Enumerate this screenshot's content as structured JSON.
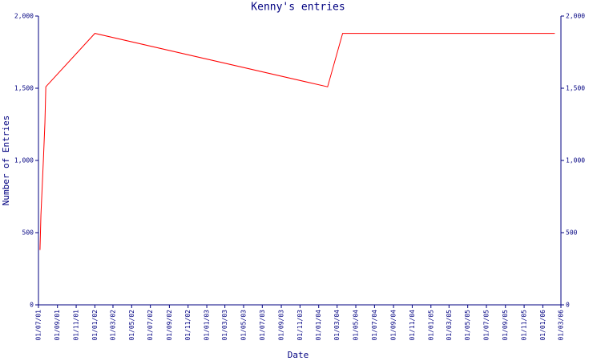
{
  "chart_data": {
    "type": "line",
    "title": "Kenny's entries",
    "x_label": "Date",
    "y_label": "Number of Entries",
    "x": [
      "2001-07-06",
      "2001-07-09",
      "2001-07-17",
      "2001-07-22",
      "2001-07-25",
      "2002-01-01",
      "2004-01-30",
      "2004-03-19",
      "2006-02-09"
    ],
    "values": [
      380,
      620,
      1000,
      1260,
      1510,
      1880,
      1510,
      1880,
      1880
    ],
    "color": "#ff0000",
    "xlim": [
      "2001-07-01",
      "2006-03-01"
    ],
    "xticks": [
      {
        "value": "2001-07-01",
        "label": "01/07/01"
      },
      {
        "value": "2001-09-01",
        "label": "01/09/01"
      },
      {
        "value": "2001-11-01",
        "label": "01/11/01"
      },
      {
        "value": "2002-01-01",
        "label": "01/01/02"
      },
      {
        "value": "2002-03-01",
        "label": "01/03/02"
      },
      {
        "value": "2002-05-01",
        "label": "01/05/02"
      },
      {
        "value": "2002-07-01",
        "label": "01/07/02"
      },
      {
        "value": "2002-09-01",
        "label": "01/09/02"
      },
      {
        "value": "2002-11-01",
        "label": "01/11/02"
      },
      {
        "value": "2003-01-01",
        "label": "01/01/03"
      },
      {
        "value": "2003-03-01",
        "label": "01/03/03"
      },
      {
        "value": "2003-05-01",
        "label": "01/05/03"
      },
      {
        "value": "2003-07-01",
        "label": "01/07/03"
      },
      {
        "value": "2003-09-01",
        "label": "01/09/03"
      },
      {
        "value": "2003-11-01",
        "label": "01/11/03"
      },
      {
        "value": "2004-01-01",
        "label": "01/01/04"
      },
      {
        "value": "2004-03-01",
        "label": "01/03/04"
      },
      {
        "value": "2004-05-01",
        "label": "01/05/04"
      },
      {
        "value": "2004-07-01",
        "label": "01/07/04"
      },
      {
        "value": "2004-09-01",
        "label": "01/09/04"
      },
      {
        "value": "2004-11-01",
        "label": "01/11/04"
      },
      {
        "value": "2005-01-01",
        "label": "01/01/05"
      },
      {
        "value": "2005-03-01",
        "label": "01/03/05"
      },
      {
        "value": "2005-05-01",
        "label": "01/05/05"
      },
      {
        "value": "2005-07-01",
        "label": "01/07/05"
      },
      {
        "value": "2005-09-01",
        "label": "01/09/05"
      },
      {
        "value": "2005-11-01",
        "label": "01/11/05"
      },
      {
        "value": "2006-01-01",
        "label": "01/01/06"
      },
      {
        "value": "2006-03-01",
        "label": "01/03/06"
      }
    ],
    "ylim": [
      0,
      2000
    ],
    "yticks": [
      0,
      500,
      {
        "value": 1000,
        "label": "1,000"
      },
      {
        "value": 1500,
        "label": "1,500"
      },
      {
        "value": 2000,
        "label": "2,000"
      }
    ]
  }
}
